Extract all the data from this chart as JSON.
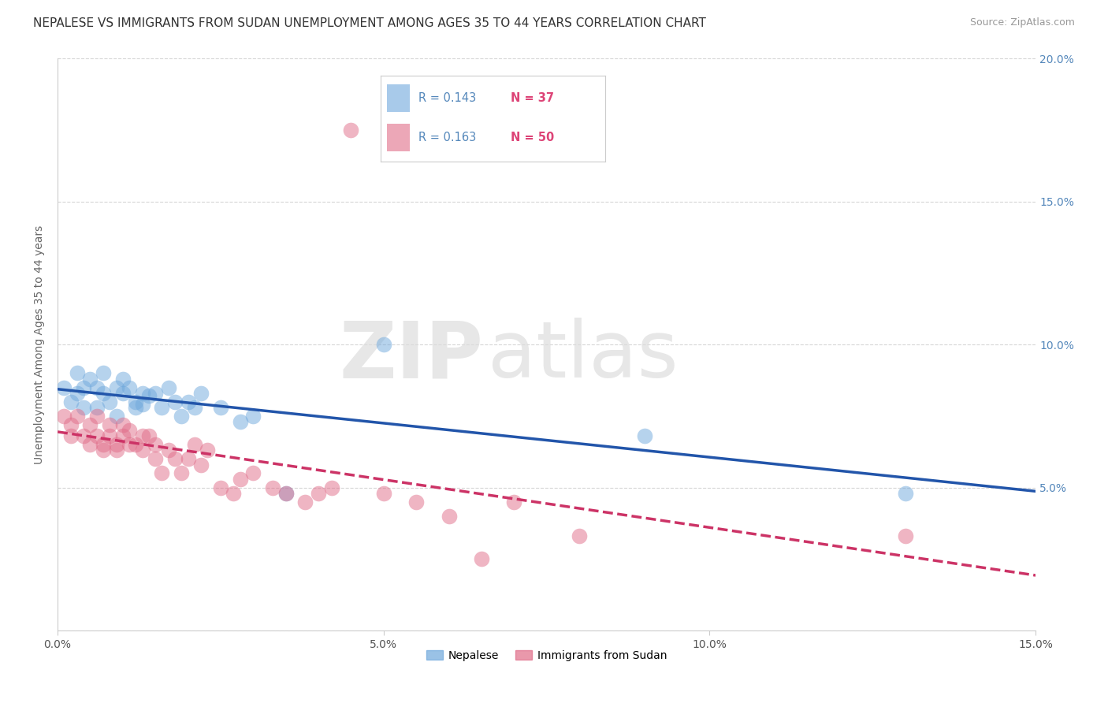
{
  "title": "NEPALESE VS IMMIGRANTS FROM SUDAN UNEMPLOYMENT AMONG AGES 35 TO 44 YEARS CORRELATION CHART",
  "source": "Source: ZipAtlas.com",
  "ylabel": "Unemployment Among Ages 35 to 44 years",
  "watermark_zip": "ZIP",
  "watermark_atlas": "atlas",
  "xmin": 0.0,
  "xmax": 0.15,
  "ymin": 0.0,
  "ymax": 0.2,
  "xticks": [
    0.0,
    0.05,
    0.1,
    0.15
  ],
  "yticks": [
    0.0,
    0.05,
    0.1,
    0.15,
    0.2
  ],
  "legend_entries": [
    {
      "label": "Nepalese",
      "R": "0.143",
      "N": "37",
      "color": "#6fa8dc"
    },
    {
      "label": "Immigrants from Sudan",
      "R": "0.163",
      "N": "50",
      "color": "#e06c88"
    }
  ],
  "nepalese_x": [
    0.001,
    0.002,
    0.003,
    0.003,
    0.004,
    0.004,
    0.005,
    0.006,
    0.006,
    0.007,
    0.007,
    0.008,
    0.009,
    0.009,
    0.01,
    0.01,
    0.011,
    0.012,
    0.012,
    0.013,
    0.013,
    0.014,
    0.015,
    0.016,
    0.017,
    0.018,
    0.019,
    0.02,
    0.021,
    0.022,
    0.025,
    0.028,
    0.03,
    0.035,
    0.05,
    0.09,
    0.13
  ],
  "nepalese_y": [
    0.085,
    0.08,
    0.09,
    0.083,
    0.085,
    0.078,
    0.088,
    0.085,
    0.078,
    0.083,
    0.09,
    0.08,
    0.085,
    0.075,
    0.083,
    0.088,
    0.085,
    0.08,
    0.078,
    0.083,
    0.079,
    0.082,
    0.083,
    0.078,
    0.085,
    0.08,
    0.075,
    0.08,
    0.078,
    0.083,
    0.078,
    0.073,
    0.075,
    0.048,
    0.1,
    0.068,
    0.048
  ],
  "sudan_x": [
    0.001,
    0.002,
    0.002,
    0.003,
    0.004,
    0.005,
    0.005,
    0.006,
    0.006,
    0.007,
    0.007,
    0.008,
    0.008,
    0.009,
    0.009,
    0.01,
    0.01,
    0.011,
    0.011,
    0.012,
    0.013,
    0.013,
    0.014,
    0.015,
    0.015,
    0.016,
    0.017,
    0.018,
    0.019,
    0.02,
    0.021,
    0.022,
    0.023,
    0.025,
    0.027,
    0.028,
    0.03,
    0.033,
    0.035,
    0.038,
    0.04,
    0.042,
    0.045,
    0.05,
    0.055,
    0.06,
    0.065,
    0.07,
    0.08,
    0.13
  ],
  "sudan_y": [
    0.075,
    0.068,
    0.072,
    0.075,
    0.068,
    0.072,
    0.065,
    0.068,
    0.075,
    0.065,
    0.063,
    0.068,
    0.072,
    0.065,
    0.063,
    0.068,
    0.072,
    0.065,
    0.07,
    0.065,
    0.068,
    0.063,
    0.068,
    0.06,
    0.065,
    0.055,
    0.063,
    0.06,
    0.055,
    0.06,
    0.065,
    0.058,
    0.063,
    0.05,
    0.048,
    0.053,
    0.055,
    0.05,
    0.048,
    0.045,
    0.048,
    0.05,
    0.175,
    0.048,
    0.045,
    0.04,
    0.025,
    0.045,
    0.033,
    0.033
  ],
  "blue_color": "#6fa8dc",
  "pink_color": "#e06c88",
  "blue_line_color": "#2255aa",
  "pink_line_color": "#cc3366",
  "grid_color": "#cccccc",
  "background_color": "#ffffff",
  "title_fontsize": 11,
  "axis_fontsize": 10,
  "tick_fontsize": 10,
  "legend_fontsize": 11
}
